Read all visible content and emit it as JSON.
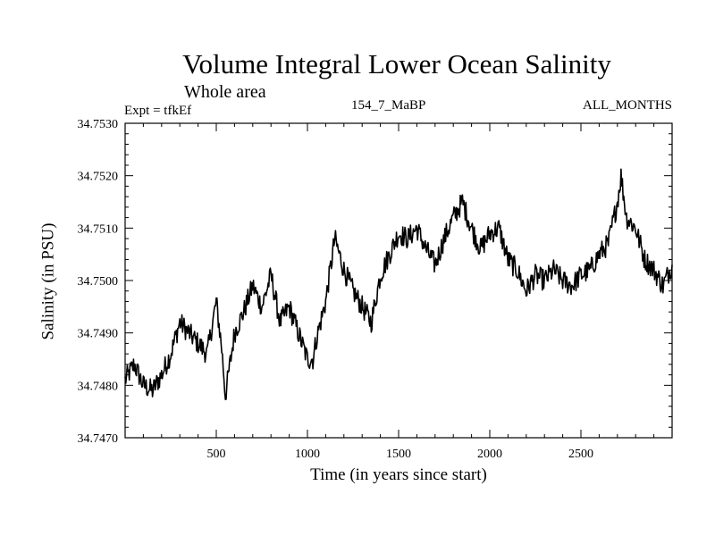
{
  "chart_data": {
    "type": "line",
    "title": "Volume Integral Lower Ocean Salinity",
    "subtitle": "Whole area",
    "annotations": {
      "experiment": "Expt = tfkEf",
      "center": "154_7_MaBP",
      "months": "ALL_MONTHS"
    },
    "xlabel": "Time (in years since start)",
    "ylabel": "Salinity (in PSU)",
    "xlim": [
      0,
      3000
    ],
    "ylim": [
      34.747,
      34.753
    ],
    "x_ticks": [
      500,
      1000,
      1500,
      2000,
      2500
    ],
    "x_tick_labels": [
      "500",
      "1000",
      "1500",
      "2000",
      "2500"
    ],
    "y_ticks": [
      34.747,
      34.748,
      34.749,
      34.75,
      34.751,
      34.752,
      34.753
    ],
    "y_tick_labels": [
      "34.7470",
      "34.7480",
      "34.7490",
      "34.7500",
      "34.7510",
      "34.7520",
      "34.7530"
    ],
    "grid": false,
    "line_color": "#000000",
    "series": [
      {
        "x": [
          0,
          50,
          100,
          150,
          200,
          250,
          300,
          350,
          400,
          450,
          500,
          530,
          550,
          600,
          650,
          700,
          750,
          800,
          850,
          900,
          950,
          1000,
          1030,
          1050,
          1100,
          1150,
          1200,
          1250,
          1300,
          1350,
          1400,
          1450,
          1500,
          1550,
          1600,
          1650,
          1700,
          1750,
          1800,
          1850,
          1900,
          1950,
          2000,
          2050,
          2100,
          2150,
          2200,
          2250,
          2300,
          2350,
          2400,
          2450,
          2500,
          2550,
          2600,
          2650,
          2700,
          2720,
          2750,
          2800,
          2850,
          2900,
          2950,
          3000
        ],
        "y": [
          34.7481,
          34.7484,
          34.748,
          34.7479,
          34.7482,
          34.7486,
          34.7492,
          34.749,
          34.7488,
          34.7486,
          34.7496,
          34.7487,
          34.7478,
          34.749,
          34.7494,
          34.7499,
          34.7495,
          34.7501,
          34.7492,
          34.7495,
          34.749,
          34.7485,
          34.7485,
          34.7489,
          34.7496,
          34.7508,
          34.7502,
          34.7498,
          34.7495,
          34.7492,
          34.7501,
          34.7505,
          34.7509,
          34.7508,
          34.751,
          34.7506,
          34.7503,
          34.7508,
          34.7512,
          34.7515,
          34.751,
          34.7506,
          34.7509,
          34.751,
          34.7504,
          34.7502,
          34.7498,
          34.7501,
          34.75,
          34.7502,
          34.75,
          34.7499,
          34.7501,
          34.7502,
          34.7505,
          34.7507,
          34.7515,
          34.752,
          34.7512,
          34.751,
          34.7504,
          34.7502,
          34.7499,
          34.7503
        ]
      }
    ]
  }
}
